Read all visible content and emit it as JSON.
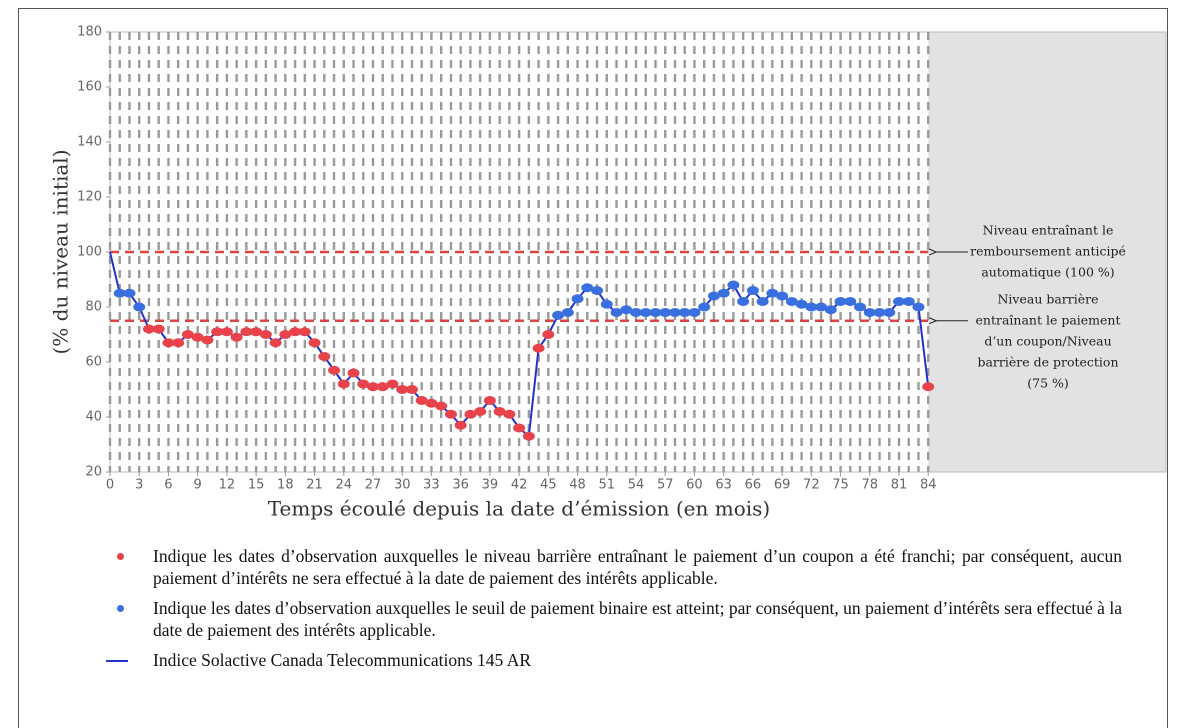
{
  "chart_data": {
    "type": "line",
    "ylabel": "(% du niveau initial)",
    "xlabel": "Temps écoulé depuis la date d’émission (en mois)",
    "xlim": [
      0,
      108
    ],
    "ylim": [
      20,
      180
    ],
    "xticks": [
      0,
      3,
      6,
      9,
      12,
      15,
      18,
      21,
      24,
      27,
      30,
      33,
      36,
      39,
      42,
      45,
      48,
      51,
      54,
      57,
      60,
      63,
      66,
      69,
      72,
      75,
      78,
      81,
      84
    ],
    "yticks": [
      20,
      40,
      60,
      80,
      100,
      120,
      140,
      160,
      180
    ],
    "x": [
      0,
      1,
      2,
      3,
      4,
      5,
      6,
      7,
      8,
      9,
      10,
      11,
      12,
      13,
      14,
      15,
      16,
      17,
      18,
      19,
      20,
      21,
      22,
      23,
      24,
      25,
      26,
      27,
      28,
      29,
      30,
      31,
      32,
      33,
      34,
      35,
      36,
      37,
      38,
      39,
      40,
      41,
      42,
      43,
      44,
      45,
      46,
      47,
      48,
      49,
      50,
      51,
      52,
      53,
      54,
      55,
      56,
      57,
      58,
      59,
      60,
      61,
      62,
      63,
      64,
      65,
      66,
      67,
      68,
      69,
      70,
      71,
      72,
      73,
      74,
      75,
      76,
      77,
      78,
      79,
      80,
      81,
      82,
      83,
      84
    ],
    "series": [
      {
        "name": "Indique les dates d’observation auxquelles le niveau barrière entraînant le paiement d’un coupon a été franchi; par conséquent, aucun paiement d’intérêts ne sera effectué à la date de paiement des intérêts applicable.",
        "color": "#e8434a",
        "mode": "markers",
        "values": [
          null,
          null,
          null,
          null,
          72,
          72,
          67,
          67,
          70,
          69,
          68,
          71,
          71,
          69,
          71,
          71,
          70,
          67,
          70,
          71,
          71,
          67,
          62,
          57,
          52,
          56,
          52,
          51,
          51,
          52,
          50,
          50,
          46,
          45,
          44,
          41,
          37,
          41,
          42,
          46,
          42,
          41,
          36,
          33,
          65,
          70,
          null,
          null,
          null,
          null,
          null,
          null,
          null,
          null,
          null,
          null,
          null,
          null,
          null,
          null,
          null,
          null,
          null,
          null,
          null,
          null,
          null,
          null,
          null,
          null,
          null,
          null,
          null,
          null,
          null,
          null,
          null,
          null,
          null,
          null,
          null,
          null,
          null,
          null,
          51
        ]
      },
      {
        "name": "Indique les dates d’observation auxquelles le seuil de paiement binaire est atteint; par conséquent, un paiement d’intérêts sera effectué à la date de paiement des intérêts applicable.",
        "color": "#3a6fe0",
        "mode": "markers",
        "values": [
          null,
          85,
          85,
          80,
          null,
          null,
          null,
          null,
          null,
          null,
          null,
          null,
          null,
          null,
          null,
          null,
          null,
          null,
          null,
          null,
          null,
          null,
          null,
          null,
          null,
          null,
          null,
          null,
          null,
          null,
          null,
          null,
          null,
          null,
          null,
          null,
          null,
          null,
          null,
          null,
          null,
          null,
          null,
          null,
          null,
          null,
          77,
          78,
          83,
          87,
          86,
          81,
          78,
          79,
          78,
          78,
          78,
          78,
          78,
          78,
          78,
          80,
          84,
          85,
          88,
          82,
          86,
          82,
          85,
          84,
          82,
          81,
          80,
          80,
          79,
          82,
          82,
          80,
          78,
          78,
          78,
          82,
          82,
          80,
          null
        ]
      },
      {
        "name": "Indice Solactive Canada Telecommunications 145 AR",
        "color": "#2233cc",
        "mode": "line",
        "values": [
          100,
          85,
          85,
          80,
          72,
          72,
          67,
          67,
          70,
          69,
          68,
          71,
          71,
          69,
          71,
          71,
          70,
          67,
          70,
          71,
          71,
          67,
          62,
          57,
          52,
          56,
          52,
          51,
          51,
          52,
          50,
          50,
          46,
          45,
          44,
          41,
          37,
          41,
          42,
          46,
          42,
          41,
          36,
          33,
          65,
          70,
          77,
          78,
          83,
          87,
          86,
          81,
          78,
          79,
          78,
          78,
          78,
          78,
          78,
          78,
          78,
          80,
          84,
          85,
          88,
          82,
          86,
          82,
          85,
          84,
          82,
          81,
          80,
          80,
          79,
          82,
          82,
          80,
          78,
          78,
          78,
          82,
          82,
          80,
          51
        ]
      }
    ],
    "reference_lines": [
      {
        "value": 100,
        "color": "#d9453f",
        "label": [
          "Niveau entraînant le",
          "remboursement anticipé",
          "automatique (100 %)"
        ]
      },
      {
        "value": 75,
        "color": "#d9453f",
        "label": [
          "Niveau barrière",
          "entraînant le paiement",
          "d’un coupon/Niveau",
          "barrière de protection",
          "(75 %)"
        ]
      }
    ]
  }
}
